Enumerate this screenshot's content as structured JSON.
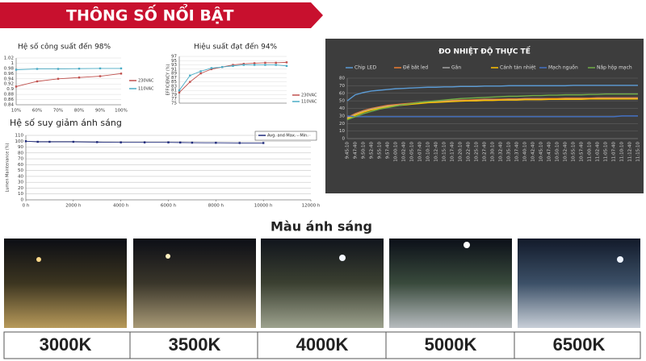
{
  "header": {
    "title": "THÔNG SỐ NỔI BẬT"
  },
  "chart_data": [
    {
      "type": "line",
      "title": "Hệ số công suất đến 98%",
      "categories": [
        "10%",
        "60%",
        "70%",
        "80%",
        "90%",
        "100%"
      ],
      "series": [
        {
          "name": "230VAC",
          "color": "#c0504d",
          "values": [
            0.91,
            0.93,
            0.94,
            0.945,
            0.95,
            0.96
          ]
        },
        {
          "name": "110VAC",
          "color": "#4bacc6",
          "values": [
            0.975,
            0.978,
            0.978,
            0.979,
            0.98,
            0.98
          ]
        }
      ],
      "ylim": [
        0.84,
        1.02
      ],
      "yticks": [
        0.84,
        0.86,
        0.88,
        0.9,
        0.92,
        0.94,
        0.96,
        0.98,
        1,
        1.02
      ],
      "grid": true,
      "legend": "right"
    },
    {
      "type": "line",
      "title": "Hiệu suất đạt đến 94%",
      "y_label": "EFFICIENCY (%)",
      "series": [
        {
          "name": "230VAC",
          "color": "#c0504d",
          "values": [
            80,
            85,
            89,
            91,
            92,
            93,
            93.5,
            93.8,
            94,
            94,
            94.2
          ]
        },
        {
          "name": "110VAC",
          "color": "#4bacc6",
          "values": [
            81,
            88,
            90,
            91.5,
            92,
            92.5,
            93,
            93,
            93,
            93,
            92.5
          ]
        }
      ],
      "ylim": [
        75,
        97
      ],
      "yticks": [
        75,
        77,
        79,
        81,
        83,
        85,
        87,
        89,
        91,
        93,
        95,
        97
      ],
      "grid": true,
      "legend": "right"
    },
    {
      "type": "line",
      "title": "Hệ số suy giảm ánh sáng",
      "y_label": "Lumen Maintenance (%)",
      "x": [
        0,
        500,
        1000,
        2000,
        3000,
        4000,
        5000,
        6000,
        6500,
        7000,
        8000,
        9000,
        10000
      ],
      "series": [
        {
          "name": "Avg. and Max. - Min.",
          "color": "#1f2a7a",
          "values": [
            100,
            99,
            99,
            99,
            98.5,
            98,
            98,
            98,
            97.8,
            97.5,
            97.3,
            97,
            97
          ]
        }
      ],
      "xlim": [
        0,
        12000
      ],
      "xticks": [
        {
          "value": 0,
          "label": "0 h"
        },
        {
          "value": 2000,
          "label": "2000 h"
        },
        {
          "value": 4000,
          "label": "4000 h"
        },
        {
          "value": 6000,
          "label": "6000 h"
        },
        {
          "value": 8000,
          "label": "8000 h"
        },
        {
          "value": 10000,
          "label": "10000 h"
        },
        {
          "value": 12000,
          "label": "12000 h"
        }
      ],
      "ylim": [
        0,
        110
      ],
      "yticks": [
        0,
        10,
        20,
        30,
        40,
        50,
        60,
        70,
        80,
        90,
        100,
        110
      ],
      "grid": true,
      "legend": "top-right"
    },
    {
      "type": "line",
      "title": "ĐO NHIỆT ĐỘ THỰC TẾ",
      "categories": [
        "9:45:10",
        "9:47:40",
        "9:50:10",
        "9:52:40",
        "9:55:10",
        "9:57:40",
        "10:00:10",
        "10:02:40",
        "10:05:10",
        "10:07:40",
        "10:10:10",
        "10:12:40",
        "10:15:10",
        "10:17:40",
        "10:20:10",
        "10:22:40",
        "10:25:10",
        "10:27:40",
        "10:30:10",
        "10:32:40",
        "10:35:10",
        "10:37:40",
        "10:40:10",
        "10:42:40",
        "10:45:10",
        "10:47:40",
        "10:50:10",
        "10:52:40",
        "10:55:10",
        "10:57:40",
        "11:00:10",
        "11:02:40",
        "11:05:10",
        "11:07:40",
        "11:10:10",
        "11:12:40",
        "11:15:10"
      ],
      "series": [
        {
          "name": "Chip LED",
          "color": "#5b9bd5",
          "values": [
            50,
            58,
            61,
            63,
            64,
            65,
            66,
            66.5,
            67,
            67.5,
            68,
            68,
            68.5,
            68.5,
            69,
            69,
            69,
            69.5,
            69.5,
            69.5,
            70,
            70,
            70,
            70,
            70,
            70,
            70,
            70,
            70.5,
            70.5,
            70.5,
            70.5,
            70.5,
            70.5,
            70.5,
            70.5,
            70.5
          ]
        },
        {
          "name": "Đế bắt led",
          "color": "#ed7d31",
          "values": [
            28,
            33,
            37,
            40,
            42,
            44,
            45,
            46,
            47,
            48,
            49,
            49.5,
            50,
            50.5,
            51,
            51,
            51.5,
            52,
            52,
            52,
            52.5,
            52.5,
            53,
            53,
            53,
            53,
            53,
            53.5,
            53.5,
            53.5,
            53.5,
            54,
            54,
            54,
            54,
            54,
            54
          ]
        },
        {
          "name": "Gân",
          "color": "#a5a5a5",
          "values": [
            27,
            32,
            36,
            39,
            41,
            43,
            44,
            45,
            46,
            47,
            48,
            48.5,
            49,
            49.5,
            50,
            50,
            50.5,
            51,
            51,
            51,
            51.5,
            51.5,
            52,
            52,
            52,
            52,
            52,
            52.5,
            52.5,
            52.5,
            52.5,
            53,
            53,
            53,
            53,
            53,
            53
          ]
        },
        {
          "name": "Cánh tản nhiệt",
          "color": "#ffc000",
          "values": [
            26,
            31,
            35,
            38,
            40,
            42,
            43.5,
            44.5,
            45.5,
            46.5,
            47.5,
            48,
            48.5,
            49,
            49.5,
            50,
            50,
            50.5,
            50.5,
            51,
            51,
            51,
            51.5,
            51.5,
            51.5,
            52,
            52,
            52,
            52,
            52,
            52.5,
            52.5,
            52.5,
            52.5,
            52.5,
            52.5,
            52.5
          ]
        },
        {
          "name": "Mạch nguồn",
          "color": "#4472c4",
          "values": [
            30,
            29,
            29,
            29,
            29,
            29,
            29,
            29,
            29,
            29,
            29,
            29,
            29,
            29,
            29,
            29,
            29,
            29,
            29,
            29,
            29,
            29,
            29,
            29,
            29,
            29,
            29,
            29,
            29,
            29,
            29,
            29,
            29,
            29,
            30,
            30,
            30
          ]
        },
        {
          "name": "Nắp hộp mạch",
          "color": "#70ad47",
          "values": [
            25,
            29,
            33,
            36,
            39,
            41,
            43,
            45,
            46.5,
            48,
            49,
            50,
            51,
            52,
            53,
            53.5,
            54,
            54.5,
            55,
            55.5,
            56,
            56,
            56.5,
            57,
            57,
            57.5,
            57.5,
            58,
            58,
            58,
            58.5,
            58.5,
            59,
            59,
            59,
            59,
            59
          ]
        }
      ],
      "ylim": [
        0,
        80
      ],
      "yticks": [
        0,
        10,
        20,
        30,
        40,
        50,
        60,
        70,
        80
      ],
      "grid": true,
      "legend": "top"
    }
  ],
  "color_section": {
    "title": "Màu ánh sáng",
    "items": [
      "3000K",
      "3500K",
      "4000K",
      "5000K",
      "6500K"
    ]
  }
}
